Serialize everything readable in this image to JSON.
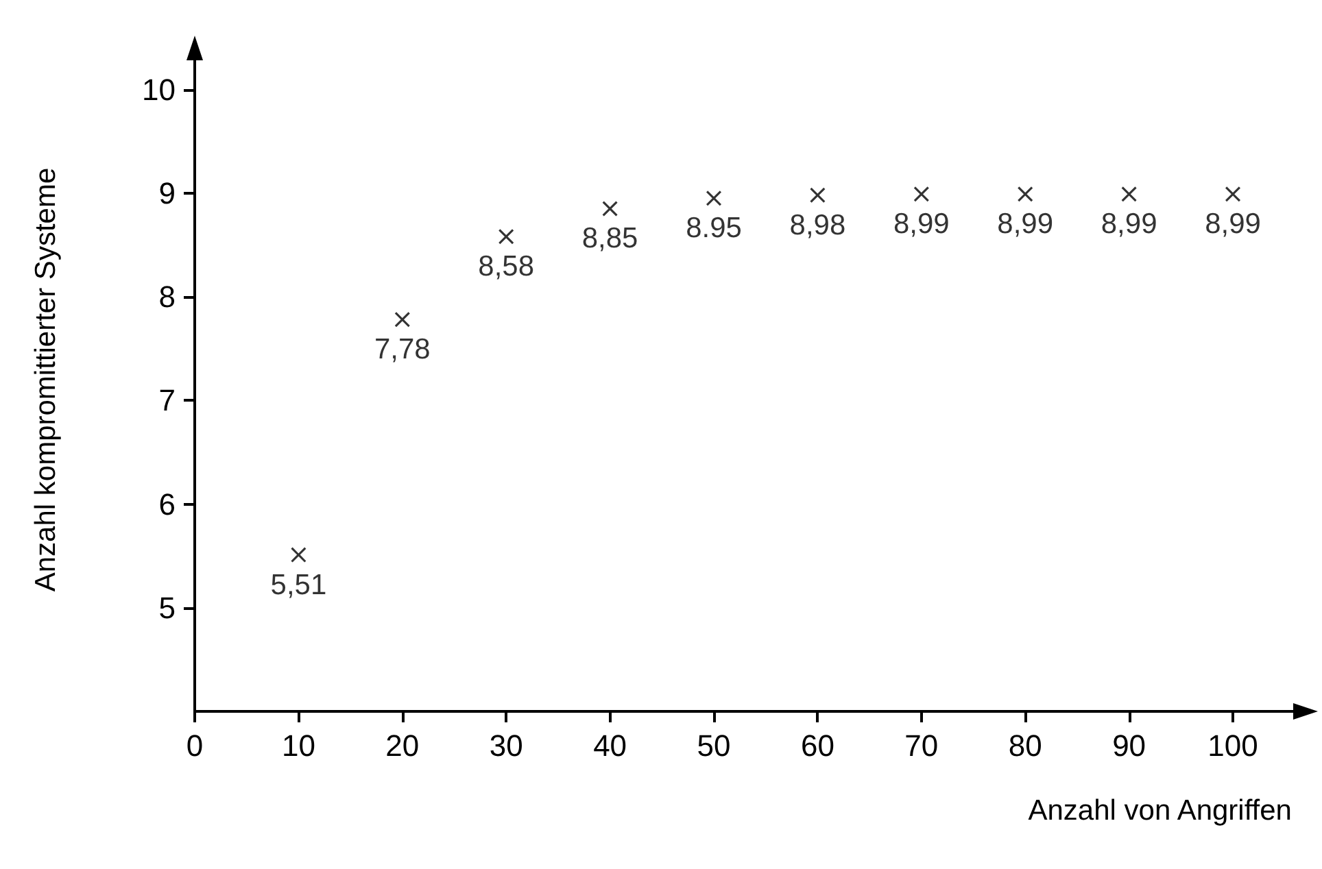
{
  "chart_data": {
    "type": "scatter",
    "x": [
      10,
      20,
      30,
      40,
      50,
      60,
      70,
      80,
      90,
      100
    ],
    "values": [
      5.51,
      7.78,
      8.58,
      8.85,
      8.95,
      8.98,
      8.99,
      8.99,
      8.99,
      8.99
    ],
    "value_labels": [
      "5,51",
      "7,78",
      "8,58",
      "8,85",
      "8.95",
      "8,98",
      "8,99",
      "8,99",
      "8,99",
      "8,99"
    ],
    "color": "#000000",
    "marker": "cross",
    "xlim": [
      0,
      107
    ],
    "xticks": [
      0,
      10,
      20,
      30,
      40,
      50,
      60,
      70,
      80,
      90,
      100
    ],
    "ylim": [
      4,
      10.4
    ],
    "yticks": [
      5,
      6,
      7,
      8,
      9,
      10
    ],
    "xlabel": "Anzahl von Angriffen",
    "ylabel": "Anzahl kompromittierter Systeme",
    "grid": false
  }
}
